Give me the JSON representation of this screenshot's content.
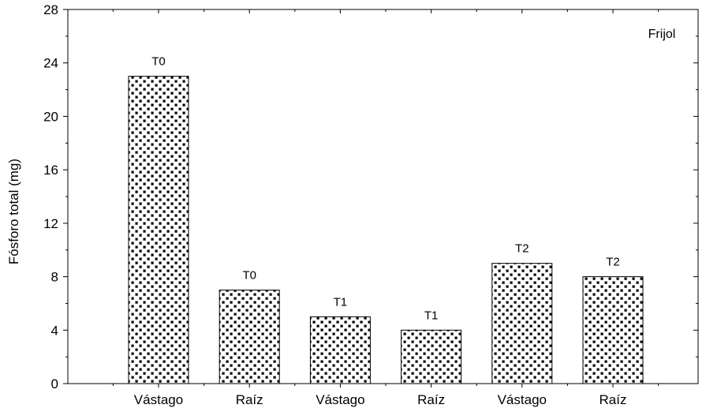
{
  "chart_data": {
    "type": "bar",
    "categories": [
      "Vástago",
      "Raíz",
      "Vástago",
      "Raíz",
      "Vástago",
      "Raíz"
    ],
    "values": [
      23,
      7,
      5,
      4,
      9,
      8
    ],
    "bar_labels": [
      "T0",
      "T0",
      "T1",
      "T1",
      "T2",
      "T2"
    ],
    "ylabel": "Fósforo total (mg)",
    "xlabel": "",
    "title": "",
    "annotation": "Frijol",
    "ylim": [
      0,
      28
    ],
    "yticks": [
      0,
      4,
      8,
      12,
      16,
      20,
      24,
      28
    ],
    "ytick_labels": [
      "0",
      "4",
      "8",
      "12",
      "16",
      "20",
      "24",
      "28"
    ],
    "grid": false,
    "bar_fill": "#ffffff",
    "dot_color": "#000000",
    "axis_color": "#000000"
  }
}
